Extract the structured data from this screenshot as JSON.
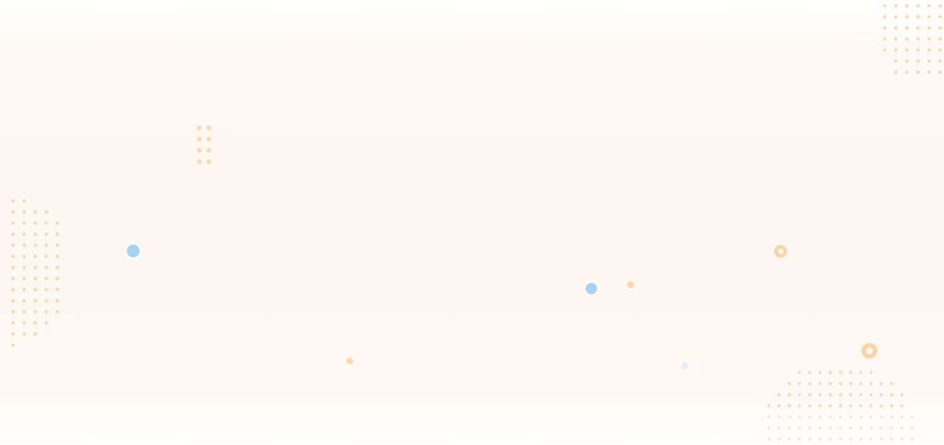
{
  "background": {
    "base_color": "#fef8f2",
    "edge_color": "#ffffff"
  },
  "palette": {
    "dot_orange": "#fcd7aa",
    "dot_orange_faint": "#fde6cc",
    "dot_blue": "#a4d4f0",
    "dot_blue_faint": "#e6eef6",
    "ring_orange": "#fcd3a3"
  },
  "decorations": {
    "dot_pattern_icon": "dot-grid-icon",
    "ring_icon": "ring-icon",
    "dot_icon": "dot-icon"
  }
}
